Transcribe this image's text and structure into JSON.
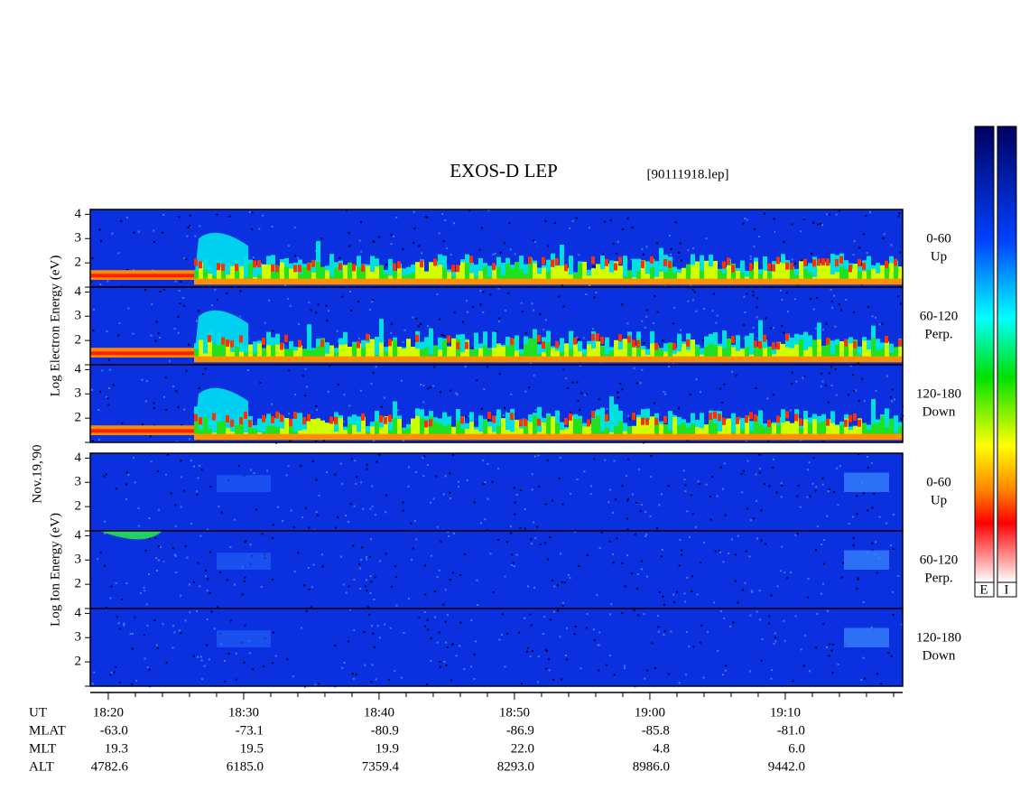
{
  "chart_data": {
    "type": "spectrogram",
    "title": "EXOS-D LEP",
    "file": "[90111918.lep]",
    "date": "Nov.19,'90",
    "xlim": [
      1098.67,
      1158.67
    ],
    "xticks": [
      {
        "value": 1100,
        "label": "18:20"
      },
      {
        "value": 1110,
        "label": "18:30"
      },
      {
        "value": 1120,
        "label": "18:40"
      },
      {
        "value": 1130,
        "label": "18:50"
      },
      {
        "value": 1140,
        "label": "19:00"
      },
      {
        "value": 1150,
        "label": "19:10"
      }
    ],
    "xminorticks": [
      1102,
      1104,
      1106,
      1108,
      1112,
      1114,
      1116,
      1118,
      1122,
      1124,
      1126,
      1128,
      1132,
      1134,
      1136,
      1138,
      1142,
      1144,
      1146,
      1148,
      1152,
      1154,
      1156,
      1158
    ],
    "ylim": [
      1,
      4.2
    ],
    "yticks": [
      2,
      3,
      4
    ],
    "groups": [
      {
        "name": "Log Electron Energy (eV)",
        "panels": [
          {
            "angle": "0-60",
            "direction": "Up"
          },
          {
            "angle": "60-120",
            "direction": "Perp."
          },
          {
            "angle": "120-180",
            "direction": "Down"
          }
        ]
      },
      {
        "name": "Log Ion Energy (eV)",
        "panels": [
          {
            "angle": "0-60",
            "direction": "Up"
          },
          {
            "angle": "60-120",
            "direction": "Perp."
          },
          {
            "angle": "120-180",
            "direction": "Down"
          }
        ]
      }
    ],
    "orbit": {
      "header": "UT",
      "rows": [
        {
          "name": "MLAT",
          "values": [
            "-63.0",
            "-73.1",
            "-80.9",
            "-86.9",
            "-85.8",
            "-81.0"
          ]
        },
        {
          "name": "MLT",
          "values": [
            "19.3",
            "19.5",
            "19.9",
            "22.0",
            "4.8",
            "6.0"
          ]
        },
        {
          "name": "ALT",
          "values": [
            "4782.6",
            "6185.0",
            "7359.4",
            "8293.0",
            "8986.0",
            "9442.0"
          ]
        }
      ]
    },
    "colorbars": [
      "E",
      "I"
    ]
  }
}
